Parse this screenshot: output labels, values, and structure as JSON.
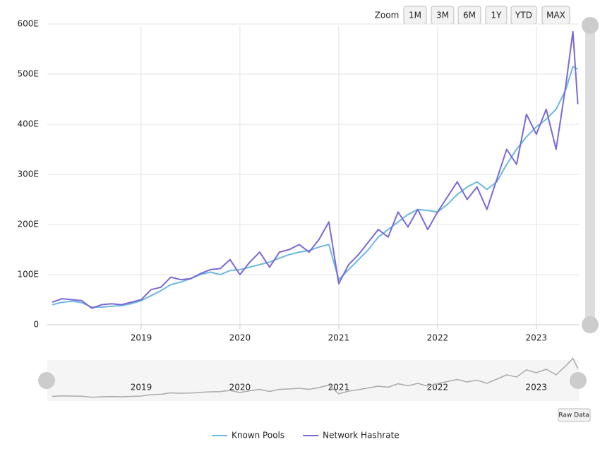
{
  "chart_data": {
    "type": "line",
    "x": [
      2018.1,
      2018.2,
      2018.3,
      2018.4,
      2018.5,
      2018.6,
      2018.7,
      2018.8,
      2018.9,
      2019.0,
      2019.1,
      2019.2,
      2019.3,
      2019.4,
      2019.5,
      2019.6,
      2019.7,
      2019.8,
      2019.9,
      2020.0,
      2020.1,
      2020.2,
      2020.3,
      2020.4,
      2020.5,
      2020.6,
      2020.7,
      2020.8,
      2020.9,
      2021.0,
      2021.1,
      2021.2,
      2021.3,
      2021.4,
      2021.5,
      2021.6,
      2021.7,
      2021.8,
      2021.9,
      2022.0,
      2022.1,
      2022.2,
      2022.3,
      2022.4,
      2022.5,
      2022.6,
      2022.7,
      2022.8,
      2022.9,
      2023.0,
      2023.1,
      2023.2,
      2023.3,
      2023.37,
      2023.42
    ],
    "series": [
      {
        "name": "Known Pools",
        "color": "#6cb9e0",
        "values": [
          40,
          45,
          47,
          44,
          35,
          35,
          37,
          38,
          42,
          48,
          58,
          68,
          80,
          85,
          92,
          100,
          105,
          100,
          108,
          110,
          115,
          120,
          125,
          133,
          140,
          145,
          148,
          155,
          160,
          90,
          110,
          130,
          150,
          175,
          190,
          205,
          220,
          230,
          228,
          225,
          240,
          260,
          275,
          285,
          270,
          285,
          320,
          350,
          375,
          395,
          410,
          430,
          470,
          515,
          510
        ]
      },
      {
        "name": "Network Hashrate",
        "color": "#7b68d8",
        "values": [
          45,
          52,
          50,
          48,
          33,
          40,
          42,
          40,
          45,
          50,
          70,
          75,
          95,
          90,
          92,
          102,
          110,
          112,
          130,
          100,
          125,
          145,
          115,
          145,
          150,
          160,
          145,
          170,
          205,
          82,
          120,
          140,
          165,
          190,
          175,
          225,
          195,
          230,
          190,
          225,
          255,
          285,
          250,
          275,
          230,
          290,
          350,
          320,
          420,
          380,
          430,
          350,
          480,
          585,
          440
        ]
      }
    ],
    "xlim": [
      2018.05,
      2023.43
    ],
    "xticks": [
      2019,
      2020,
      2021,
      2022,
      2023
    ],
    "ylim": [
      0,
      600
    ],
    "yticks": [
      0,
      {
        "value": 100,
        "label": "100E"
      },
      {
        "value": 200,
        "label": "200E"
      },
      {
        "value": 300,
        "label": "300E"
      },
      {
        "value": 400,
        "label": "400E"
      },
      {
        "value": 500,
        "label": "500E"
      },
      {
        "value": 600,
        "label": "600E"
      }
    ],
    "grid": true
  },
  "controls": {
    "zoom_label": "Zoom",
    "zoom_buttons": [
      "1M",
      "3M",
      "6M",
      "1Y",
      "YTD",
      "MAX"
    ],
    "raw_data": "Raw Data"
  }
}
